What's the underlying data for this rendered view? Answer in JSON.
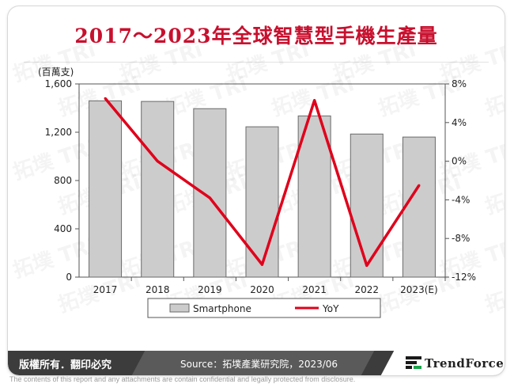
{
  "title": "2017～2023年全球智慧型手機生產量",
  "footer": {
    "rights": "版權所有．翻印必究",
    "source": "Source：拓墣產業研究院，2023/06",
    "logo_text": "TrendForce"
  },
  "disclaimer": "The contents of this report and any attachments are contain confidential and legally protected from disclosure.",
  "watermark_text": "拓墣 TRi",
  "colors": {
    "title": "#c8102e",
    "bar": "#cccccc",
    "line": "#e0001b",
    "footer": "#3c3c3c"
  },
  "chart_data": {
    "type": "bar",
    "categories": [
      "2017",
      "2018",
      "2019",
      "2020",
      "2021",
      "2022",
      "2023(E)"
    ],
    "y_left_unit": "(百萬支)",
    "y_left_ticks": [
      "0",
      "400",
      "800",
      "1,200",
      "1,600"
    ],
    "y_left_range": [
      0,
      1600
    ],
    "y_right_ticks": [
      "-12%",
      "-8%",
      "-4%",
      "0%",
      "4%",
      "8%"
    ],
    "y_right_range": [
      -12,
      8
    ],
    "series": [
      {
        "name": "Smartphone",
        "type": "bar",
        "values": [
          1460,
          1455,
          1395,
          1245,
          1335,
          1185,
          1160
        ]
      },
      {
        "name": "YoY",
        "type": "line",
        "axis": "right",
        "values": [
          6.5,
          0,
          -3.8,
          -10.7,
          6.3,
          -10.8,
          -2.5
        ]
      }
    ],
    "legend_position": "bottom",
    "grid": false
  }
}
